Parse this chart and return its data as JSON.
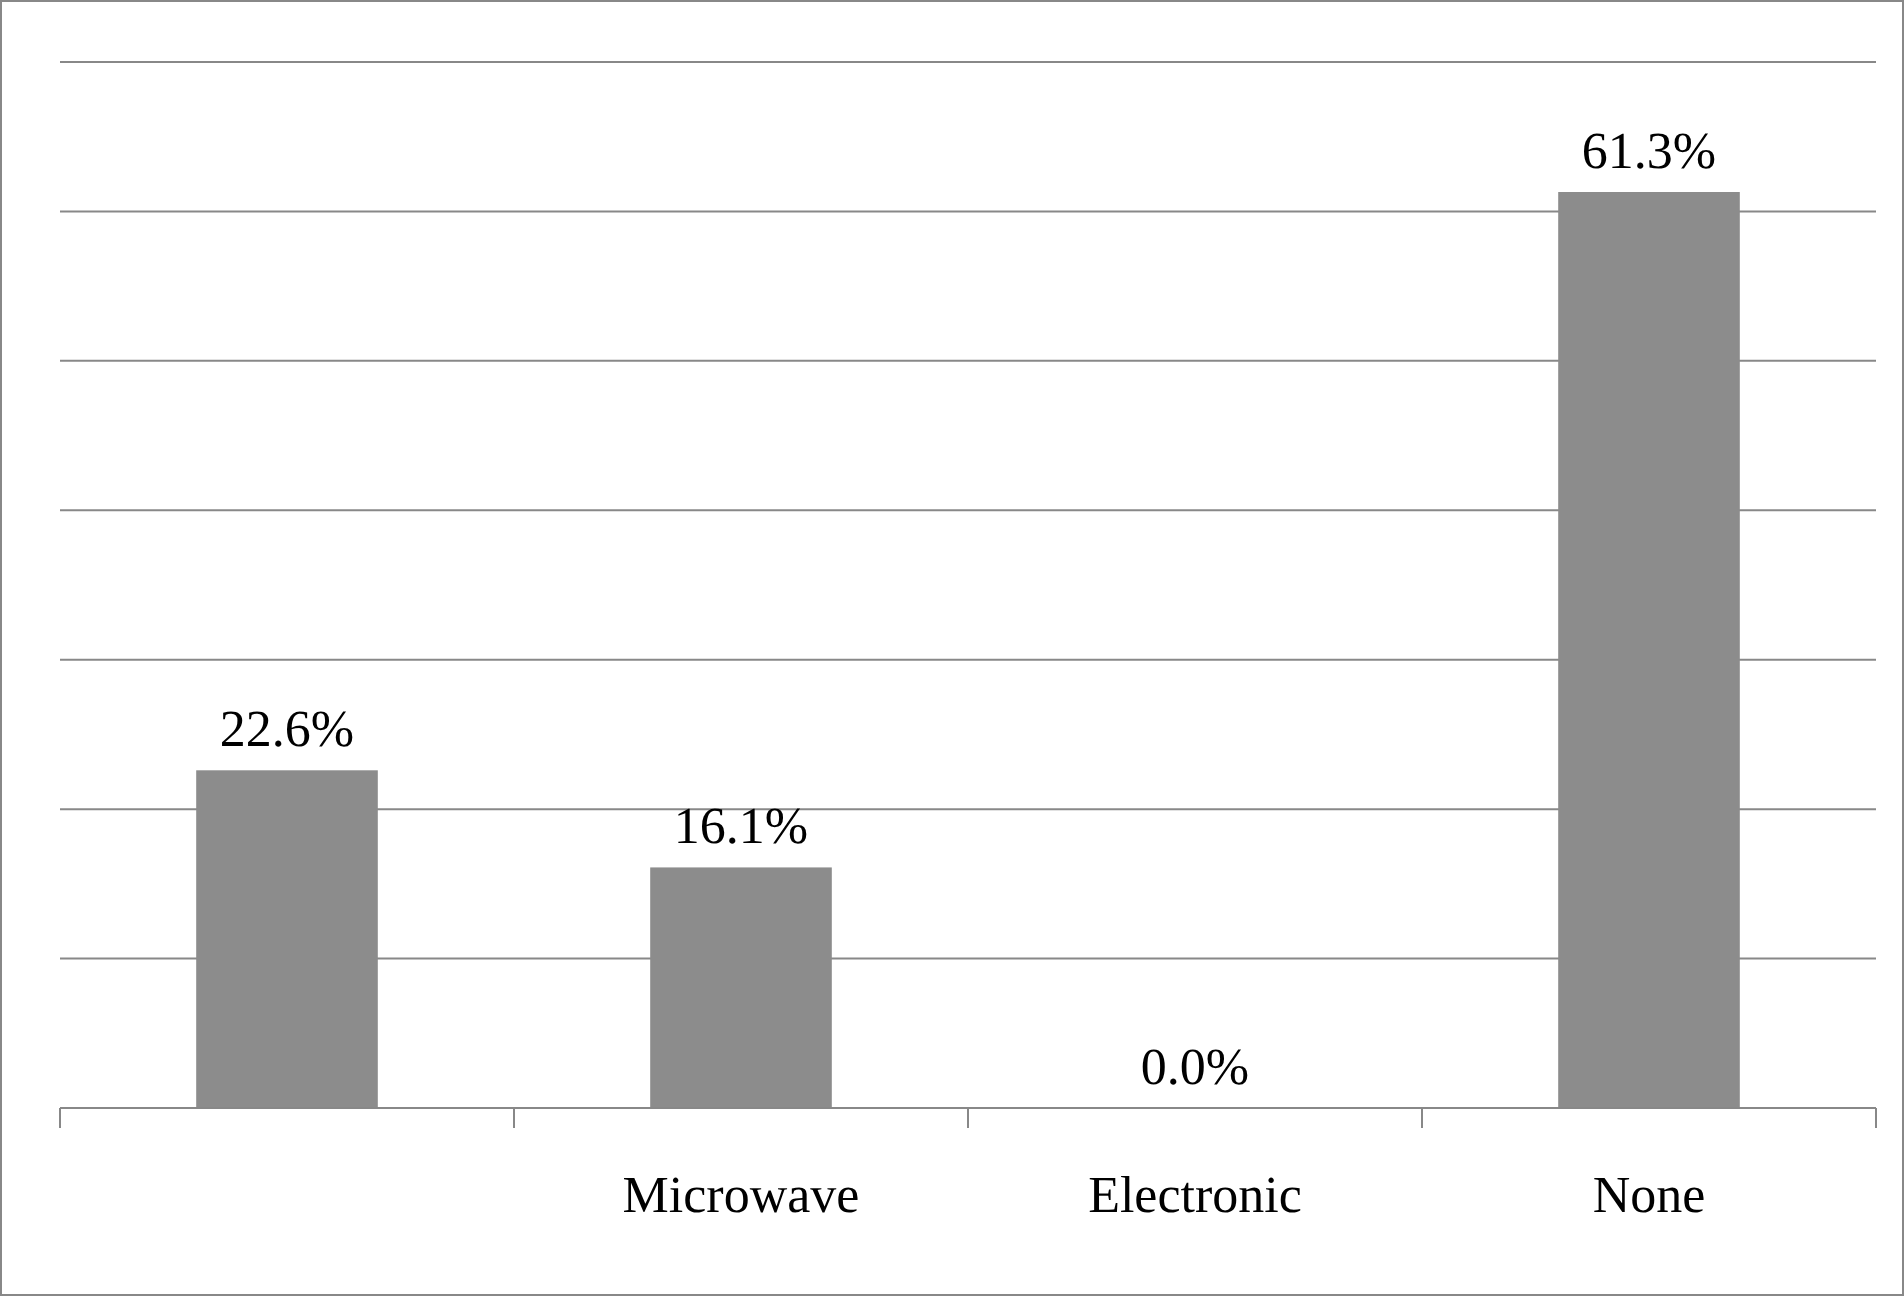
{
  "chart_data": {
    "type": "bar",
    "categories": [
      null,
      "Microwave",
      "Electronic",
      "None"
    ],
    "values": [
      22.6,
      16.1,
      0.0,
      61.3
    ],
    "color": "#8c8c8c",
    "value_labels": [
      "22.6%",
      "16.1%",
      "0.0%",
      "61.3%"
    ],
    "ylim": [
      0,
      70
    ],
    "yticks": [
      {
        "value": 0,
        "label": null
      },
      {
        "value": 10,
        "label": null
      },
      {
        "value": 20,
        "label": null
      },
      {
        "value": 30,
        "label": null
      },
      {
        "value": 40,
        "label": null
      },
      {
        "value": 50,
        "label": null
      },
      {
        "value": 60,
        "label": null
      },
      {
        "value": 70,
        "label": null
      }
    ],
    "grid": "y",
    "tick_labels": "x"
  }
}
